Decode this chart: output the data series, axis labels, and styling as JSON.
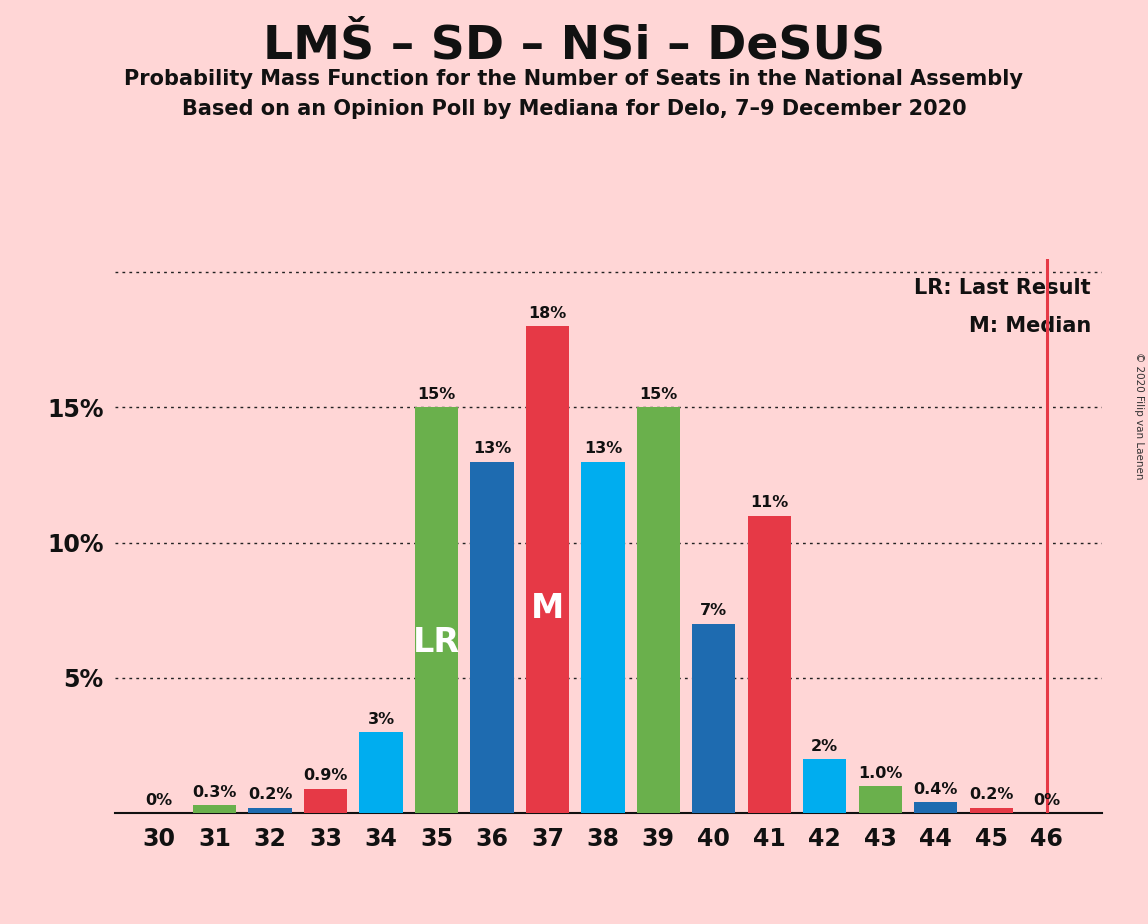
{
  "title": "LMŠ – SD – NSi – DeSUS",
  "subtitle1": "Probability Mass Function for the Number of Seats in the National Assembly",
  "subtitle2": "Based on an Opinion Poll by Mediana for Delo, 7–9 December 2020",
  "copyright": "© 2020 Filip van Laenen",
  "categories": [
    30,
    31,
    32,
    33,
    34,
    35,
    36,
    37,
    38,
    39,
    40,
    41,
    42,
    43,
    44,
    45,
    46
  ],
  "values": [
    0.0,
    0.3,
    0.2,
    0.9,
    3.0,
    15.0,
    13.0,
    18.0,
    13.0,
    15.0,
    7.0,
    11.0,
    2.0,
    1.0,
    0.4,
    0.2,
    0.0
  ],
  "bar_colors": [
    "#6ab04c",
    "#6ab04c",
    "#1e6bb0",
    "#e63946",
    "#00adef",
    "#6ab04c",
    "#1e6bb0",
    "#e63946",
    "#00adef",
    "#6ab04c",
    "#1e6bb0",
    "#e63946",
    "#00adef",
    "#6ab04c",
    "#1e6bb0",
    "#e63946",
    "#e63946"
  ],
  "labels": [
    "0%",
    "0.3%",
    "0.2%",
    "0.9%",
    "3%",
    "15%",
    "13%",
    "18%",
    "13%",
    "15%",
    "7%",
    "11%",
    "2%",
    "1.0%",
    "0.4%",
    "0.2%",
    "0%"
  ],
  "lr_seat": 35,
  "median_seat": 37,
  "background_color": "#ffd6d6",
  "grid_color": "#222222",
  "ylim_max": 20.5,
  "yticks": [
    0,
    5,
    10,
    15,
    20
  ],
  "ytick_labels": [
    "",
    "5%",
    "10%",
    "15%",
    ""
  ],
  "legend_lr": "LR: Last Result",
  "legend_m": "M: Median",
  "vertical_line_x": 46,
  "vertical_line_color": "#e63946",
  "bar_width": 0.78
}
